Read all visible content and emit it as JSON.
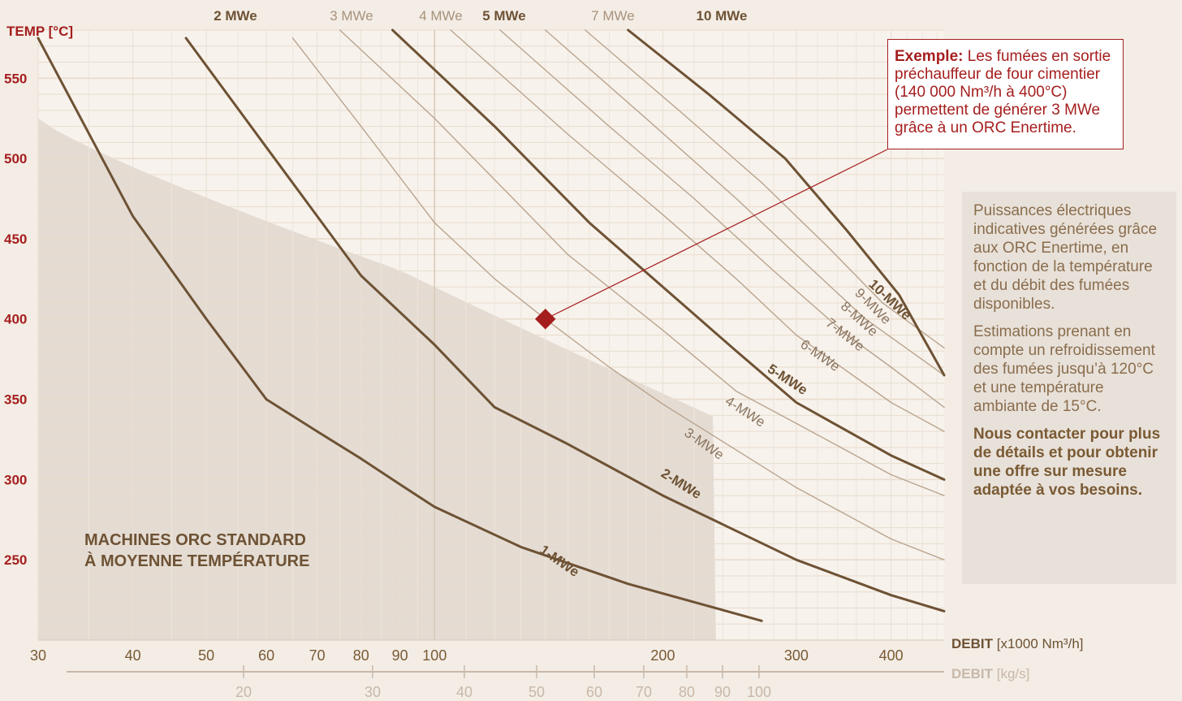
{
  "chart_data": {
    "type": "line",
    "title": "",
    "ylabel": "TEMP [°C]",
    "x_scale": "log",
    "xlim": [
      30,
      470
    ],
    "ylim": [
      200,
      580
    ],
    "yticks": [
      250,
      300,
      350,
      400,
      450,
      500,
      550
    ],
    "xticks": [
      30,
      40,
      50,
      60,
      70,
      80,
      90,
      100,
      200,
      300,
      400
    ],
    "xlabel_main": "DEBIT",
    "xlabel_main_unit": "[x1000 Nm³/h]",
    "secondary_axis": {
      "label": "DEBIT",
      "unit": "[kg/s]",
      "ticks": [
        20,
        30,
        40,
        50,
        60,
        70,
        80,
        90,
        100
      ]
    },
    "top_labels": [
      {
        "text": "2 MWe",
        "bold": true
      },
      {
        "text": "3 MWe",
        "bold": false
      },
      {
        "text": "4 MWe",
        "bold": false
      },
      {
        "text": "5 MWe",
        "bold": true
      },
      {
        "text": "7 MWe",
        "bold": false
      },
      {
        "text": "10 MWe",
        "bold": true
      }
    ],
    "series": [
      {
        "name": "1 MWe",
        "label": "1-MWe",
        "weight": "bold",
        "points": [
          [
            30,
            575
          ],
          [
            40,
            464
          ],
          [
            50,
            400
          ],
          [
            60,
            350
          ],
          [
            70,
            330
          ],
          [
            80,
            313
          ],
          [
            90,
            297
          ],
          [
            100,
            283
          ],
          [
            130,
            258
          ],
          [
            180,
            235
          ],
          [
            270,
            212
          ]
        ]
      },
      {
        "name": "2 MWe",
        "label": "2-MWe",
        "weight": "bold",
        "points": [
          [
            47,
            575
          ],
          [
            60,
            507
          ],
          [
            80,
            427
          ],
          [
            100,
            384
          ],
          [
            120,
            345
          ],
          [
            150,
            322
          ],
          [
            200,
            290
          ],
          [
            300,
            250
          ],
          [
            400,
            228
          ],
          [
            470,
            218
          ]
        ]
      },
      {
        "name": "3 MWe",
        "label": "3-MWe",
        "weight": "thin",
        "points": [
          [
            65,
            575
          ],
          [
            80,
            520
          ],
          [
            100,
            460
          ],
          [
            120,
            425
          ],
          [
            140,
            400
          ],
          [
            170,
            370
          ],
          [
            200,
            347
          ],
          [
            300,
            295
          ],
          [
            400,
            263
          ],
          [
            470,
            250
          ]
        ]
      },
      {
        "name": "4 MWe",
        "label": "4-MWe",
        "weight": "thin",
        "points": [
          [
            75,
            580
          ],
          [
            100,
            525
          ],
          [
            150,
            440
          ],
          [
            200,
            393
          ],
          [
            250,
            355
          ],
          [
            300,
            335
          ],
          [
            400,
            303
          ],
          [
            470,
            290
          ]
        ]
      },
      {
        "name": "5 MWe",
        "label": "5-MWe",
        "weight": "bold",
        "points": [
          [
            88,
            580
          ],
          [
            120,
            520
          ],
          [
            160,
            460
          ],
          [
            200,
            420
          ],
          [
            250,
            380
          ],
          [
            300,
            348
          ],
          [
            400,
            315
          ],
          [
            470,
            300
          ]
        ]
      },
      {
        "name": "6 MWe",
        "label": "6-MWe",
        "weight": "thin",
        "points": [
          [
            105,
            580
          ],
          [
            150,
            515
          ],
          [
            200,
            465
          ],
          [
            250,
            425
          ],
          [
            300,
            390
          ],
          [
            400,
            348
          ],
          [
            470,
            330
          ]
        ]
      },
      {
        "name": "7 MWe",
        "label": "7-MWe",
        "weight": "thin",
        "points": [
          [
            122,
            580
          ],
          [
            170,
            520
          ],
          [
            220,
            475
          ],
          [
            280,
            430
          ],
          [
            350,
            390
          ],
          [
            400,
            370
          ],
          [
            470,
            345
          ]
        ]
      },
      {
        "name": "8 MWe",
        "label": "8-MWe",
        "weight": "thin",
        "points": [
          [
            140,
            580
          ],
          [
            190,
            525
          ],
          [
            250,
            475
          ],
          [
            300,
            440
          ],
          [
            370,
            400
          ],
          [
            470,
            365
          ]
        ]
      },
      {
        "name": "9 MWe",
        "label": "9-MWe",
        "weight": "thin",
        "points": [
          [
            158,
            580
          ],
          [
            210,
            530
          ],
          [
            270,
            485
          ],
          [
            330,
            445
          ],
          [
            390,
            410
          ],
          [
            470,
            382
          ]
        ]
      },
      {
        "name": "10 MWe",
        "label": "10-MWe",
        "weight": "bold",
        "points": [
          [
            180,
            580
          ],
          [
            230,
            540
          ],
          [
            290,
            500
          ],
          [
            350,
            455
          ],
          [
            410,
            415
          ],
          [
            470,
            365
          ]
        ]
      }
    ],
    "example_point": {
      "x": 140,
      "y": 400
    },
    "region_label": [
      "MACHINES ORC STANDARD",
      "À MOYENNE TEMPÉRATURE"
    ]
  },
  "example": {
    "title": "Exemple:",
    "text": "Les fumées en sortie préchauffeur de four cimentier (140 000 Nm³/h à 400°C) permettent de générer 3 MWe grâce à un ORC Enertime."
  },
  "side": {
    "p1": "Puissances électriques indicatives générées grâce aux ORC Enertime, en fonction de la température et du débit des fumées disponibles.",
    "p2": "Estimations prenant en compte un refroidissement des fumées jusqu’à 120°C et une température ambiante de 15°C.",
    "p3": "Nous contacter pour plus de détails et pour obtenir une offre sur mesure adaptée à vos besoins."
  },
  "colors": {
    "bold_line": "#6e5234",
    "thin_line": "#b9a48f",
    "accent": "#a51e1e",
    "axis_text": "#6e5234",
    "secondary_axis": "#c8b8a8"
  }
}
